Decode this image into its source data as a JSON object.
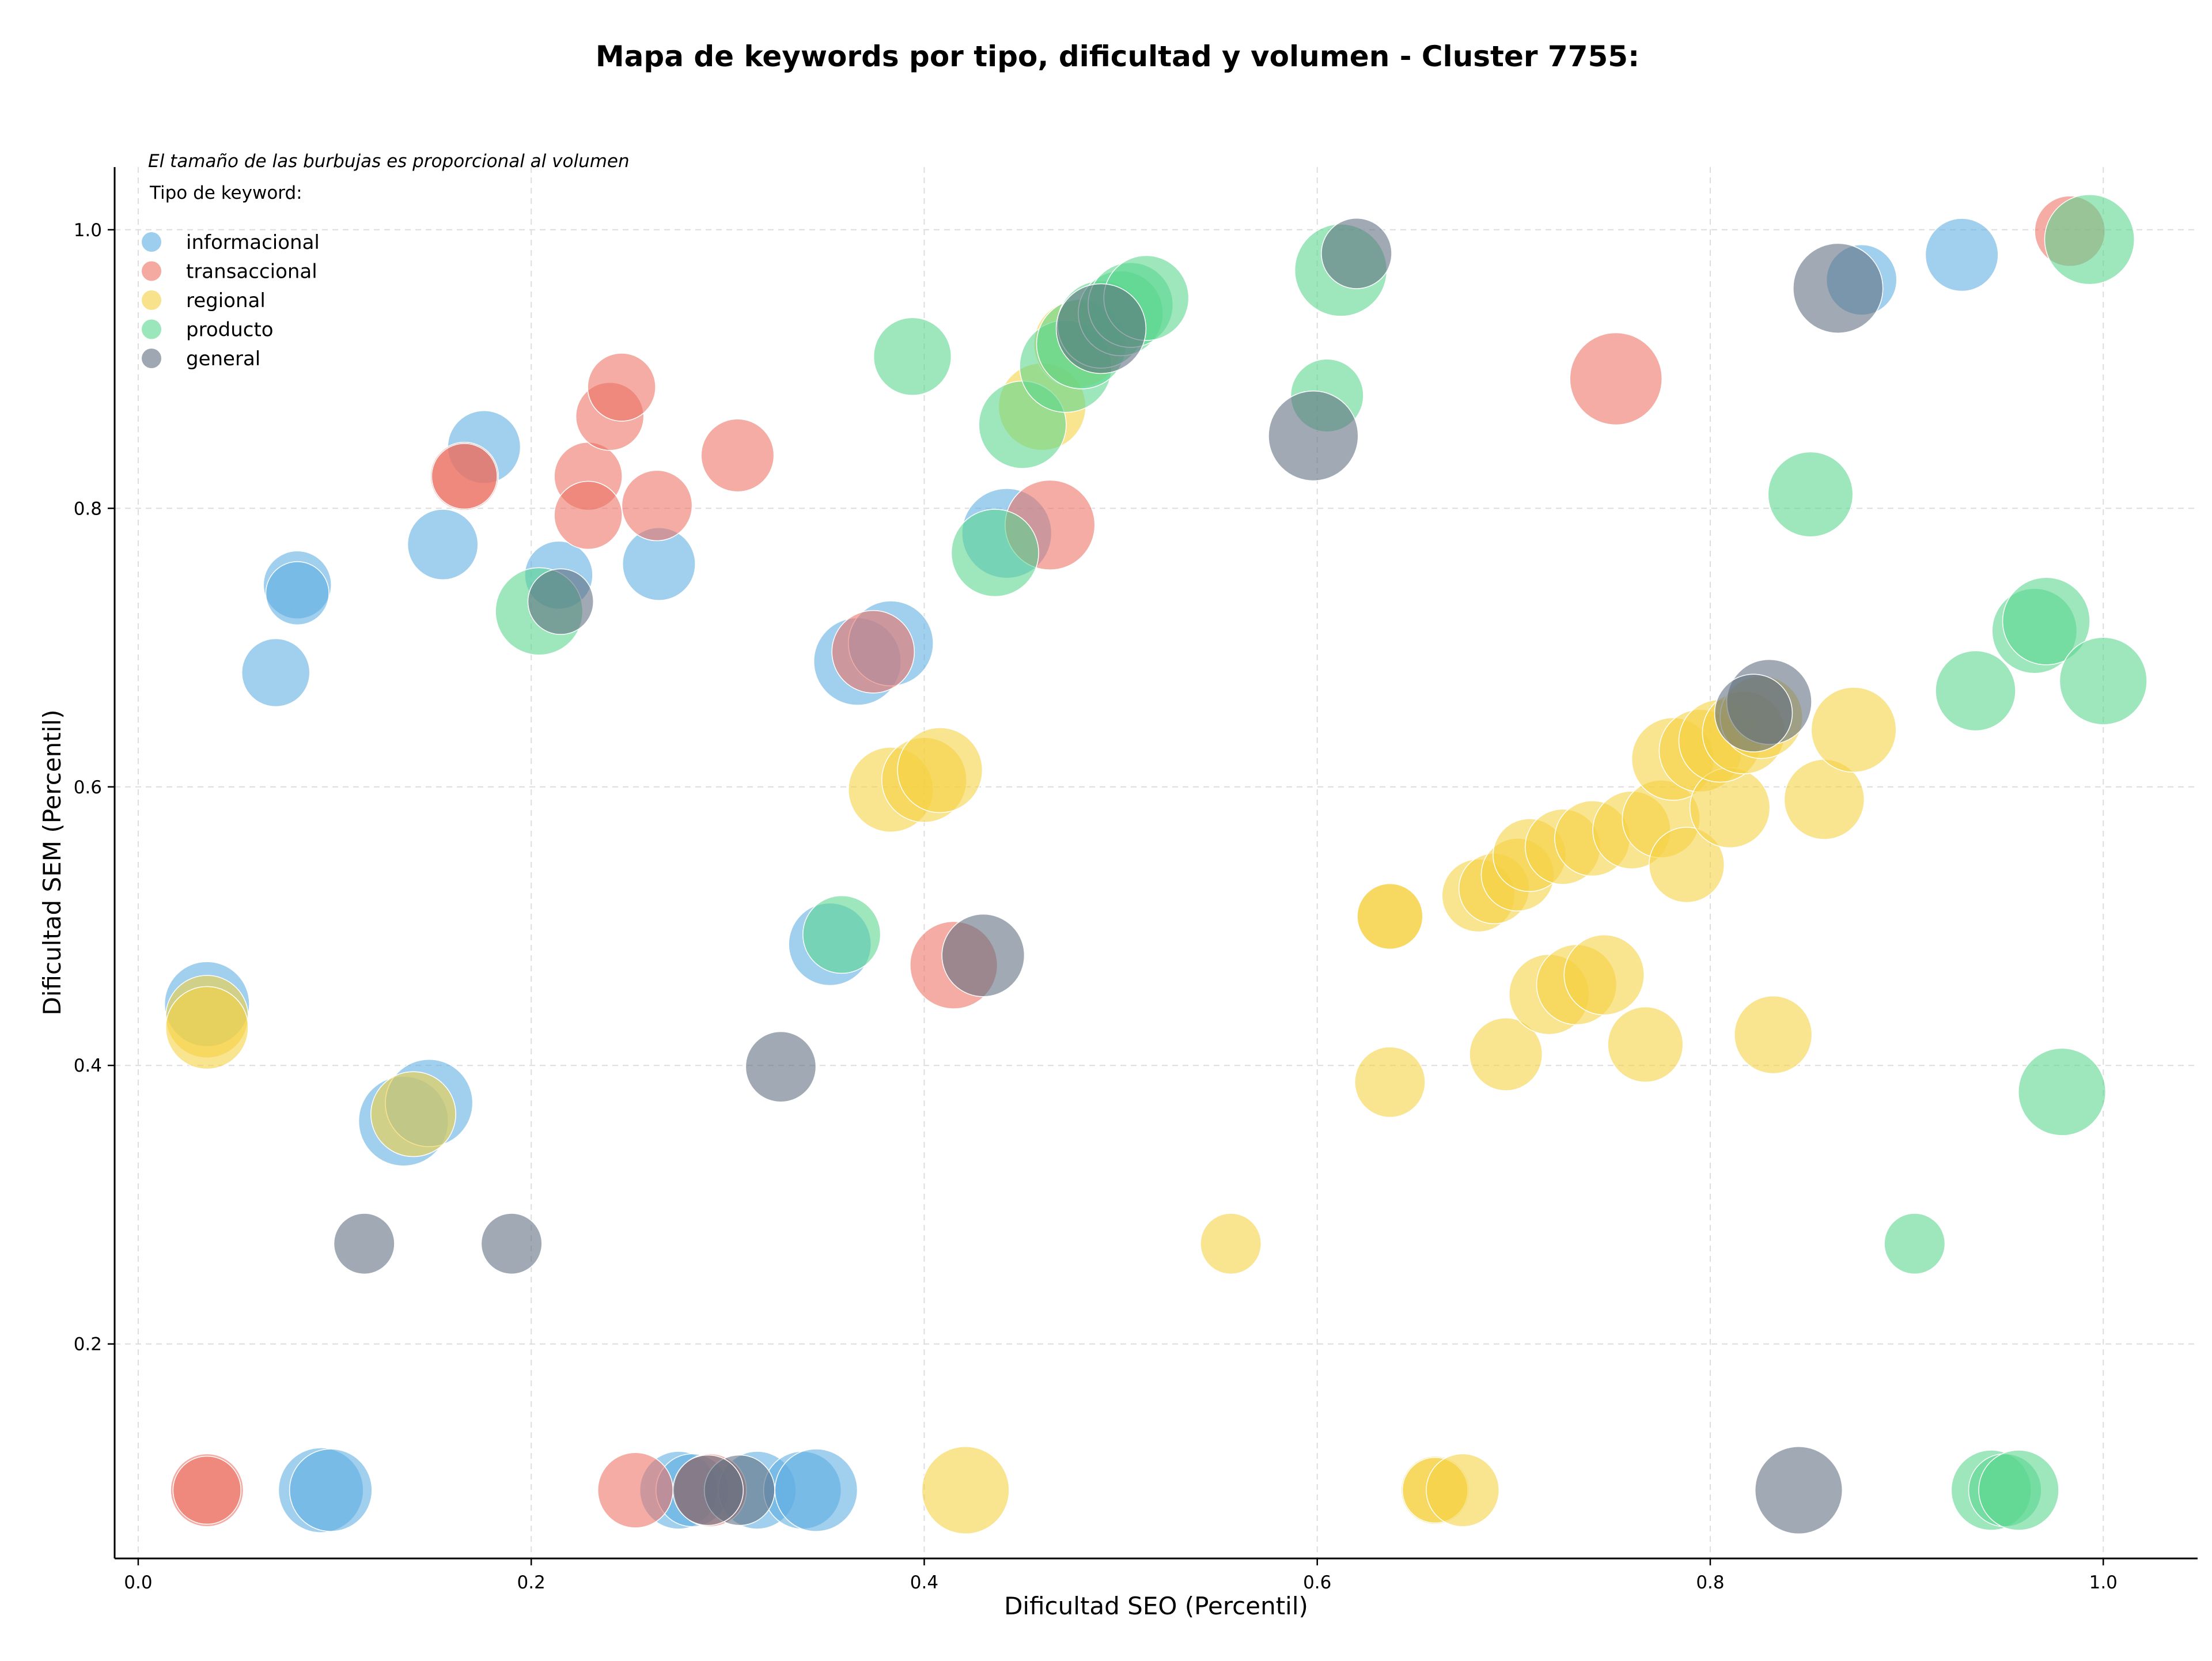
{
  "chart_data": {
    "type": "scatter",
    "title": "Mapa de keywords por tipo, dificultad y volumen - Cluster 7755:",
    "xlabel": "Dificultad SEO (Percentil)",
    "ylabel": "Dificultad SEM (Percentil)",
    "annotation": "El tamaño de las burbujas es proporcional al volumen",
    "legend_title": "Tipo de keyword:",
    "legend_position": "top-left",
    "xlim": [
      -0.012,
      1.048
    ],
    "ylim": [
      0.046,
      1.045
    ],
    "x_ticks": [
      "0.0",
      "0.2",
      "0.4",
      "0.6",
      "0.8",
      "1.0"
    ],
    "y_ticks": [
      "0.2",
      "0.4",
      "0.6",
      "0.8",
      "1.0"
    ],
    "grid": true,
    "series": [
      {
        "name": "informacional",
        "color": "#5DADE2",
        "points": [
          [
            0.081,
            0.745,
            0.5
          ],
          [
            0.081,
            0.739,
            0.4
          ],
          [
            0.07,
            0.682,
            0.5
          ],
          [
            0.155,
            0.774,
            0.55
          ],
          [
            0.176,
            0.844,
            0.6
          ],
          [
            0.214,
            0.752,
            0.5
          ],
          [
            0.265,
            0.76,
            0.6
          ],
          [
            0.035,
            0.444,
            0.85
          ],
          [
            0.135,
            0.36,
            0.95
          ],
          [
            0.148,
            0.373,
            0.9
          ],
          [
            0.366,
            0.69,
            0.9
          ],
          [
            0.383,
            0.703,
            0.85
          ],
          [
            0.442,
            0.782,
            0.95
          ],
          [
            0.352,
            0.487,
            0.8
          ],
          [
            0.093,
            0.095,
            0.85
          ],
          [
            0.098,
            0.095,
            0.8
          ],
          [
            0.275,
            0.095,
            0.7
          ],
          [
            0.282,
            0.095,
            0.6
          ],
          [
            0.315,
            0.095,
            0.7
          ],
          [
            0.338,
            0.095,
            0.7
          ],
          [
            0.345,
            0.095,
            0.8
          ],
          [
            0.877,
            0.964,
            0.55
          ],
          [
            0.928,
            0.982,
            0.6
          ]
        ]
      },
      {
        "name": "transaccional",
        "color": "#EC7063",
        "points": [
          [
            0.166,
            0.823,
            0.5
          ],
          [
            0.166,
            0.823,
            0.45
          ],
          [
            0.229,
            0.823,
            0.5
          ],
          [
            0.229,
            0.795,
            0.5
          ],
          [
            0.24,
            0.866,
            0.5
          ],
          [
            0.246,
            0.887,
            0.5
          ],
          [
            0.264,
            0.802,
            0.55
          ],
          [
            0.305,
            0.838,
            0.6
          ],
          [
            0.374,
            0.697,
            0.8
          ],
          [
            0.464,
            0.788,
            0.95
          ],
          [
            0.415,
            0.472,
            0.9
          ],
          [
            0.752,
            0.893,
            1.0
          ],
          [
            0.035,
            0.095,
            0.6
          ],
          [
            0.035,
            0.095,
            0.5
          ],
          [
            0.253,
            0.095,
            0.65
          ],
          [
            0.291,
            0.095,
            0.6
          ],
          [
            0.983,
            0.999,
            0.55
          ]
        ]
      },
      {
        "name": "regional",
        "color": "#F4D03F",
        "points": [
          [
            0.035,
            0.435,
            0.8
          ],
          [
            0.035,
            0.427,
            0.8
          ],
          [
            0.14,
            0.365,
            0.85
          ],
          [
            0.383,
            0.598,
            0.85
          ],
          [
            0.4,
            0.605,
            0.85
          ],
          [
            0.408,
            0.612,
            0.85
          ],
          [
            0.46,
            0.873,
            0.9
          ],
          [
            0.478,
            0.918,
            0.9
          ],
          [
            0.421,
            0.095,
            0.9
          ],
          [
            0.556,
            0.272,
            0.35
          ],
          [
            0.637,
            0.507,
            0.45
          ],
          [
            0.637,
            0.507,
            0.45
          ],
          [
            0.637,
            0.388,
            0.55
          ],
          [
            0.66,
            0.095,
            0.5
          ],
          [
            0.66,
            0.095,
            0.45
          ],
          [
            0.674,
            0.095,
            0.6
          ],
          [
            0.682,
            0.522,
            0.6
          ],
          [
            0.69,
            0.527,
            0.55
          ],
          [
            0.696,
            0.408,
            0.6
          ],
          [
            0.702,
            0.537,
            0.6
          ],
          [
            0.708,
            0.551,
            0.6
          ],
          [
            0.718,
            0.451,
            0.75
          ],
          [
            0.725,
            0.557,
            0.65
          ],
          [
            0.732,
            0.458,
            0.75
          ],
          [
            0.74,
            0.563,
            0.65
          ],
          [
            0.746,
            0.465,
            0.75
          ],
          [
            0.76,
            0.569,
            0.7
          ],
          [
            0.767,
            0.415,
            0.65
          ],
          [
            0.775,
            0.577,
            0.7
          ],
          [
            0.788,
            0.544,
            0.65
          ],
          [
            0.781,
            0.62,
            0.8
          ],
          [
            0.795,
            0.626,
            0.8
          ],
          [
            0.81,
            0.585,
            0.75
          ],
          [
            0.805,
            0.633,
            0.8
          ],
          [
            0.817,
            0.639,
            0.8
          ],
          [
            0.832,
            0.422,
            0.7
          ],
          [
            0.858,
            0.591,
            0.75
          ],
          [
            0.873,
            0.641,
            0.85
          ],
          [
            0.826,
            0.65,
            0.8
          ]
        ]
      },
      {
        "name": "producto",
        "color": "#58D68D",
        "points": [
          [
            0.204,
            0.726,
            0.9
          ],
          [
            0.394,
            0.909,
            0.7
          ],
          [
            0.358,
            0.494,
            0.7
          ],
          [
            0.436,
            0.768,
            0.9
          ],
          [
            0.45,
            0.86,
            0.9
          ],
          [
            0.472,
            0.902,
            1.0
          ],
          [
            0.48,
            0.918,
            0.95
          ],
          [
            0.49,
            0.932,
            0.9
          ],
          [
            0.5,
            0.94,
            0.85
          ],
          [
            0.505,
            0.946,
            0.85
          ],
          [
            0.513,
            0.951,
            0.85
          ],
          [
            0.612,
            0.971,
            1.0
          ],
          [
            0.605,
            0.881,
            0.6
          ],
          [
            0.851,
            0.81,
            0.85
          ],
          [
            0.935,
            0.669,
            0.75
          ],
          [
            0.965,
            0.712,
            0.85
          ],
          [
            0.971,
            0.719,
            0.9
          ],
          [
            0.993,
            0.993,
            0.95
          ],
          [
            0.979,
            0.381,
            0.9
          ],
          [
            1.0,
            0.676,
            0.9
          ],
          [
            0.943,
            0.095,
            0.75
          ],
          [
            0.95,
            0.095,
            0.6
          ],
          [
            0.957,
            0.095,
            0.75
          ],
          [
            0.904,
            0.272,
            0.35
          ]
        ]
      },
      {
        "name": "general",
        "color": "#5D6D7E",
        "points": [
          [
            0.215,
            0.733,
            0.45
          ],
          [
            0.115,
            0.272,
            0.35
          ],
          [
            0.19,
            0.272,
            0.35
          ],
          [
            0.327,
            0.399,
            0.55
          ],
          [
            0.306,
            0.095,
            0.55
          ],
          [
            0.29,
            0.095,
            0.55
          ],
          [
            0.43,
            0.479,
            0.8
          ],
          [
            0.49,
            0.929,
            0.95
          ],
          [
            0.598,
            0.852,
            0.95
          ],
          [
            0.62,
            0.983,
            0.55
          ],
          [
            0.865,
            0.958,
            0.95
          ],
          [
            0.83,
            0.661,
            0.85
          ],
          [
            0.822,
            0.653,
            0.7
          ],
          [
            0.845,
            0.095,
            0.9
          ]
        ]
      }
    ]
  }
}
